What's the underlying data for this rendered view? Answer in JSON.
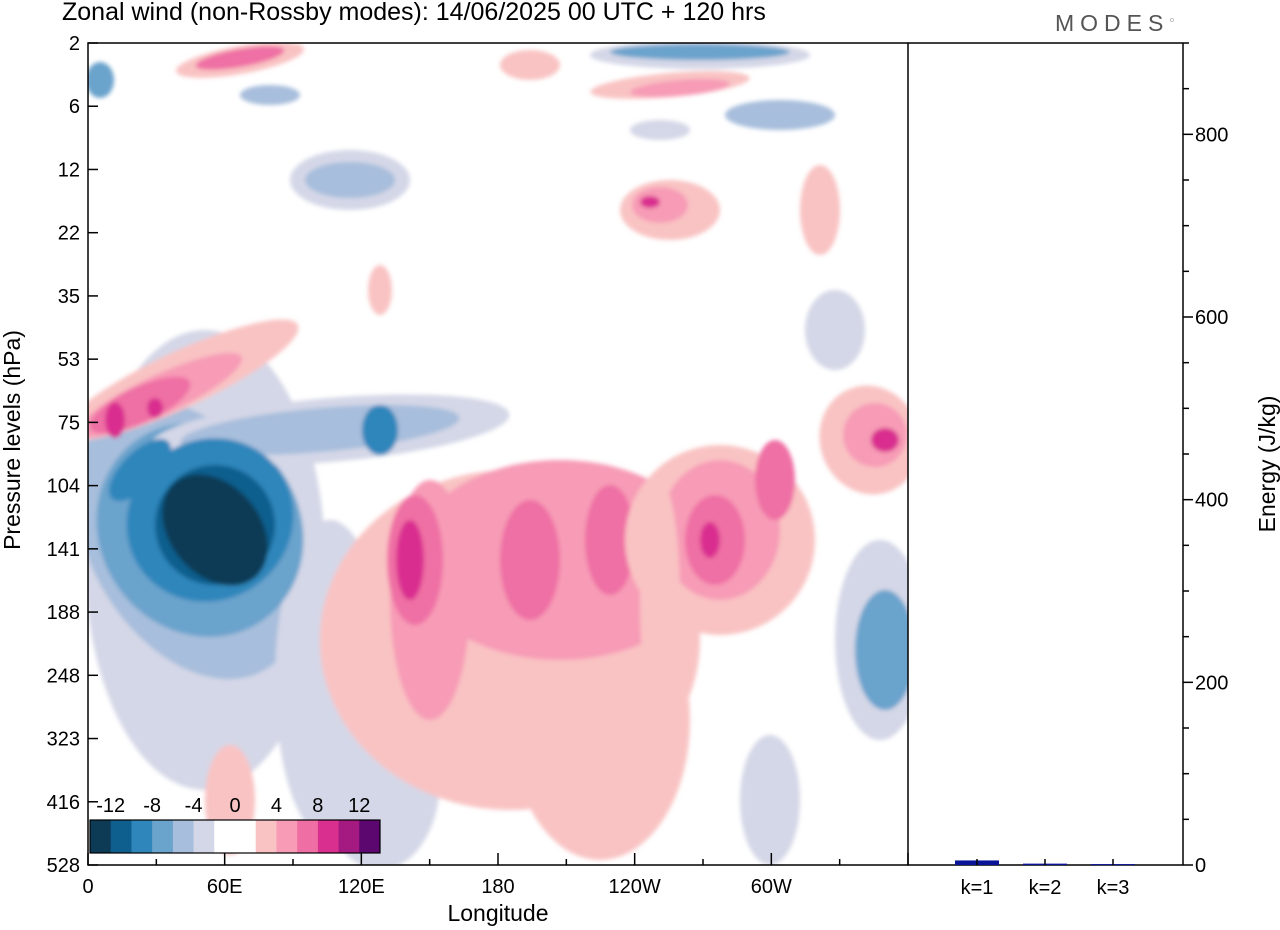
{
  "header": {
    "title": "Zonal wind (non-Rossby modes):  14/06/2025  00 UTC  + 120 hrs",
    "logo": "MODES"
  },
  "chart_data": [
    {
      "type": "heatmap",
      "title": "Zonal wind (non-Rossby modes):  14/06/2025  00 UTC  + 120 hrs",
      "xlabel": "Longitude",
      "ylabel": "Pressure levels (hPa)",
      "x_ticks": [
        "0",
        "60E",
        "120E",
        "180",
        "120W",
        "60W"
      ],
      "y_ticks": [
        "2",
        "6",
        "12",
        "22",
        "35",
        "53",
        "75",
        "104",
        "141",
        "188",
        "248",
        "323",
        "416",
        "528"
      ],
      "colorbar": {
        "tick_labels": [
          "-12",
          "-8",
          "-4",
          "0",
          "4",
          "8",
          "12"
        ],
        "colors": [
          "#0d3a55",
          "#0f5f8e",
          "#2e86bb",
          "#6aa3cc",
          "#a7bedc",
          "#d4d7e7",
          "#ffffff",
          "#ffffff",
          "#f9c3c3",
          "#f79bb6",
          "#ef6fa4",
          "#d92f8f",
          "#a51a80",
          "#5c0670"
        ]
      },
      "features": [
        {
          "sign": "negative",
          "level": "-12",
          "lon": [
            40,
            75
          ],
          "p": [
            104,
            188
          ]
        },
        {
          "sign": "positive",
          "level": "8",
          "lon": [
            140,
            148
          ],
          "p": [
            116,
            188
          ]
        },
        {
          "sign": "positive",
          "level": "8",
          "lon": [
            10,
            40
          ],
          "p": [
            66,
            85
          ]
        },
        {
          "sign": "positive",
          "level": "8",
          "lon": [
            270,
            285
          ],
          "p": [
            115,
            160
          ]
        },
        {
          "sign": "positive",
          "level": "8",
          "lon": [
            345,
            358
          ],
          "p": [
            67,
            85
          ]
        },
        {
          "sign": "positive",
          "level": "8",
          "lon": [
            240,
            250
          ],
          "p": [
            14,
            19
          ]
        }
      ]
    },
    {
      "type": "bar",
      "categories": [
        "k=1",
        "k=2",
        "k=3"
      ],
      "values": [
        5,
        1.5,
        1
      ],
      "ylabel": "Energy (J/kg)",
      "y_ticks": [
        "0",
        "200",
        "400",
        "600",
        "800"
      ],
      "ylim": [
        0,
        900
      ],
      "bar_color": "#0a1496"
    }
  ]
}
